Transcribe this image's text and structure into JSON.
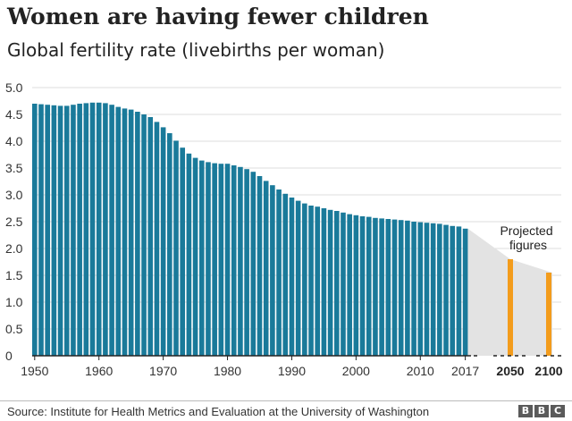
{
  "header": {
    "title": "Women are having fewer children",
    "subtitle": "Global fertility rate (livebirths per woman)"
  },
  "footer": {
    "source": "Source: Institute for Health Metrics and Evaluation at the University of Washington",
    "logo": [
      "B",
      "B",
      "C"
    ]
  },
  "colors": {
    "bar": "#1a7a9a",
    "projection_bar": "#f39c1c",
    "projection_band": "#e3e3e3",
    "grid": "#dddddd",
    "axis": "#222222"
  },
  "chart_data": {
    "type": "bar",
    "title": "Women are having fewer children",
    "subtitle": "Global fertility rate (livebirths per woman)",
    "ylim": [
      0,
      5.0
    ],
    "yticks": [
      "0",
      "0.5",
      "1.0",
      "1.5",
      "2.0",
      "2.5",
      "3.0",
      "3.5",
      "4.0",
      "4.5",
      "5.0"
    ],
    "xticks": [
      "1950",
      "1960",
      "1970",
      "1980",
      "1990",
      "2000",
      "2010",
      "2017"
    ],
    "grid": true,
    "series": [
      {
        "name": "",
        "x": [
          1950,
          1951,
          1952,
          1953,
          1954,
          1955,
          1956,
          1957,
          1958,
          1959,
          1960,
          1961,
          1962,
          1963,
          1964,
          1965,
          1966,
          1967,
          1968,
          1969,
          1970,
          1971,
          1972,
          1973,
          1974,
          1975,
          1976,
          1977,
          1978,
          1979,
          1980,
          1981,
          1982,
          1983,
          1984,
          1985,
          1986,
          1987,
          1988,
          1989,
          1990,
          1991,
          1992,
          1993,
          1994,
          1995,
          1996,
          1997,
          1998,
          1999,
          2000,
          2001,
          2002,
          2003,
          2004,
          2005,
          2006,
          2007,
          2008,
          2009,
          2010,
          2011,
          2012,
          2013,
          2014,
          2015,
          2016,
          2017
        ],
        "values": [
          4.7,
          4.69,
          4.68,
          4.67,
          4.66,
          4.66,
          4.68,
          4.7,
          4.71,
          4.72,
          4.72,
          4.71,
          4.68,
          4.64,
          4.61,
          4.59,
          4.55,
          4.5,
          4.45,
          4.36,
          4.26,
          4.15,
          4.01,
          3.88,
          3.77,
          3.69,
          3.64,
          3.61,
          3.59,
          3.58,
          3.58,
          3.55,
          3.52,
          3.48,
          3.43,
          3.35,
          3.26,
          3.18,
          3.1,
          3.02,
          2.95,
          2.89,
          2.84,
          2.8,
          2.78,
          2.75,
          2.72,
          2.7,
          2.67,
          2.64,
          2.62,
          2.6,
          2.59,
          2.57,
          2.56,
          2.55,
          2.54,
          2.53,
          2.52,
          2.5,
          2.49,
          2.48,
          2.47,
          2.46,
          2.44,
          2.42,
          2.41,
          2.37
        ]
      },
      {
        "name": "Projected figures",
        "x": [
          "2050",
          "2100"
        ],
        "values": [
          1.8,
          1.55
        ]
      }
    ],
    "annotation": "Projected figures"
  }
}
